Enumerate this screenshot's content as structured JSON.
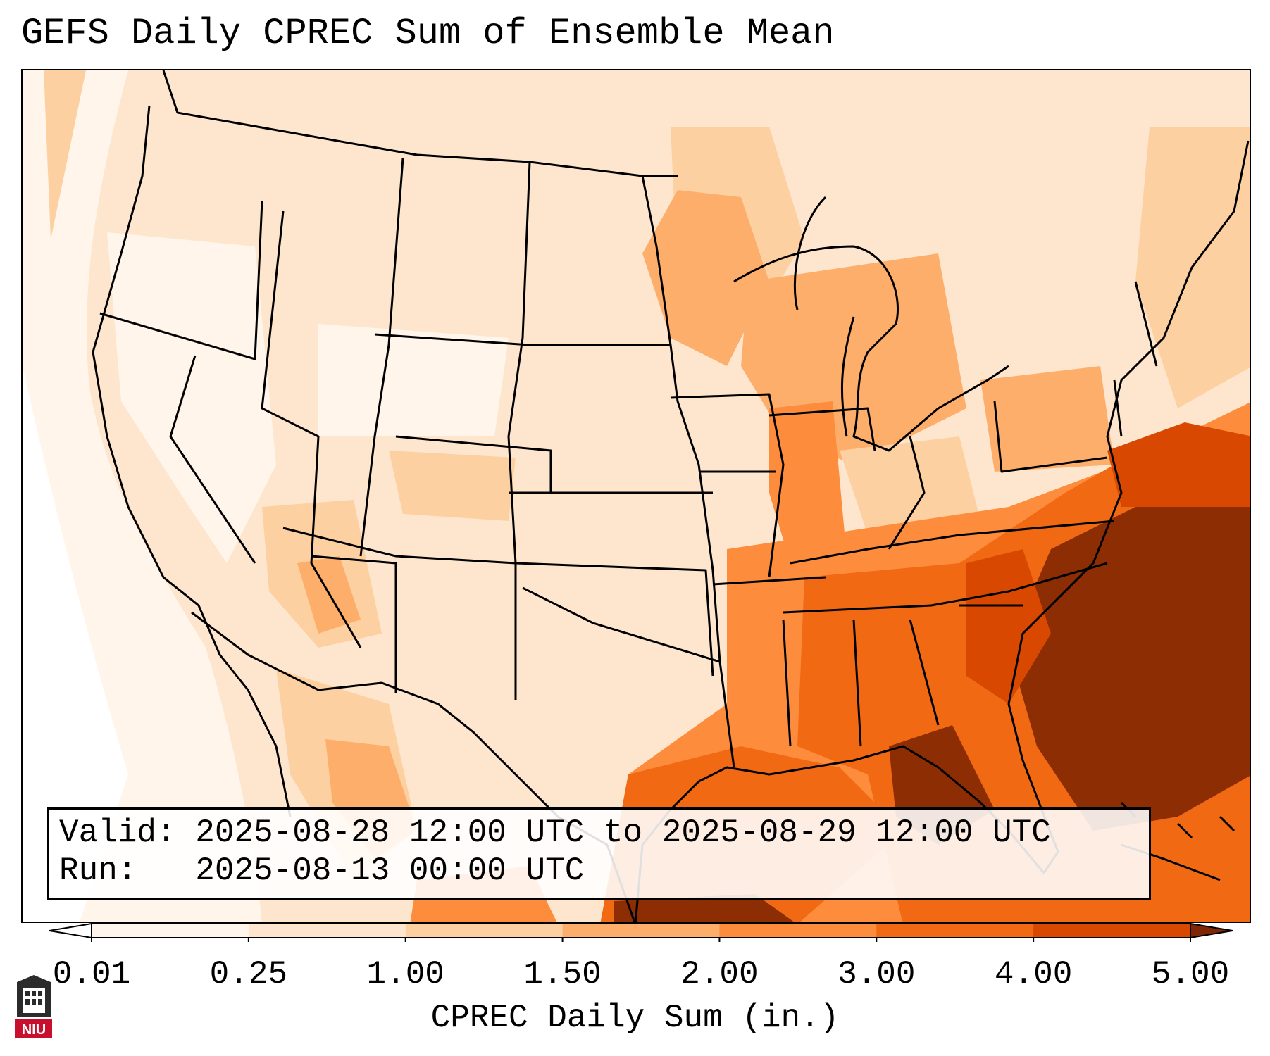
{
  "title": "GEFS Daily CPREC Sum of Ensemble Mean",
  "info": {
    "valid_line": "Valid: 2025-08-28 12:00 UTC to 2025-08-29 12:00 UTC",
    "run_line": "Run:   2025-08-13 00:00 UTC"
  },
  "colorbar": {
    "label": "CPREC Daily Sum (in.)",
    "ticks": [
      "0.01",
      "0.25",
      "1.00",
      "1.50",
      "2.00",
      "3.00",
      "4.00",
      "5.00"
    ],
    "colors": [
      "#fff5eb",
      "#fee6ce",
      "#fdd0a2",
      "#fdae6b",
      "#fd8d3c",
      "#f16913",
      "#d94801",
      "#8c2d04"
    ],
    "under_color": "#ffffff",
    "over_color": "#7f2704"
  },
  "logo": {
    "text": "NIU"
  }
}
